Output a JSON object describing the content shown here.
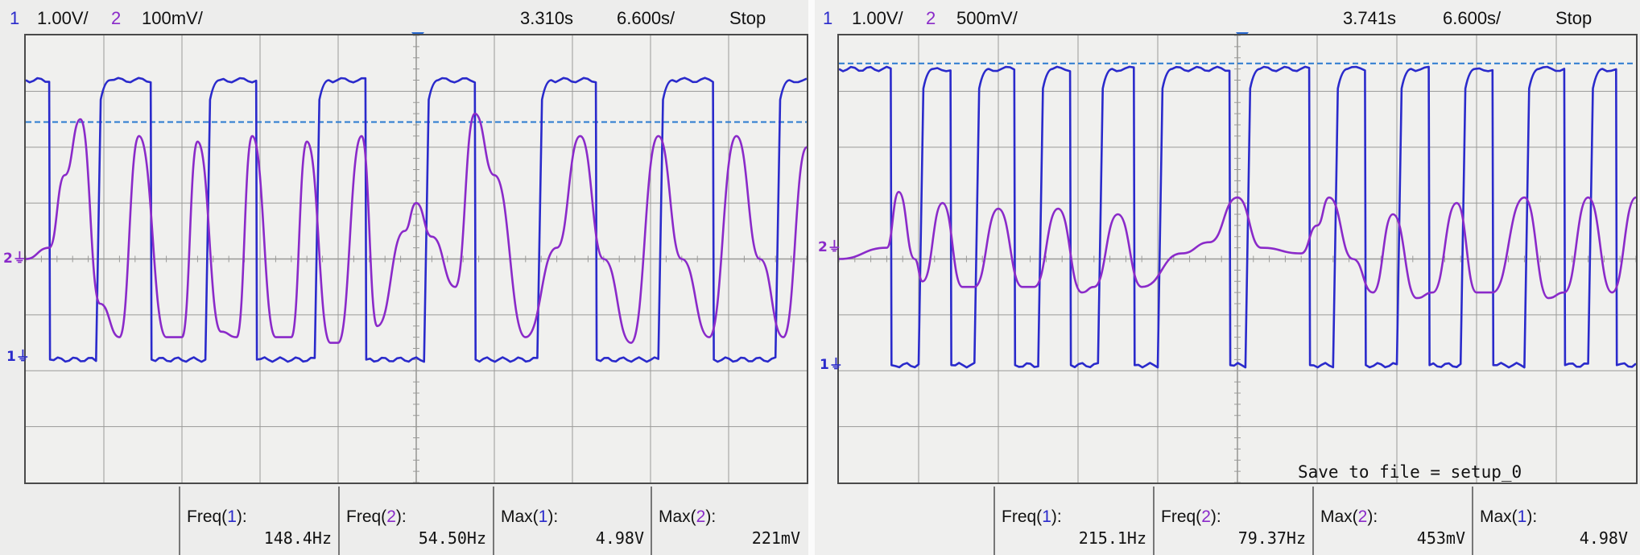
{
  "left": {
    "ch1_label": "1",
    "ch1_scale": "1.00V/",
    "ch2_label": "2",
    "ch2_scale": "100mV/",
    "timebase": "3.310s",
    "delay": "6.600s/",
    "run_state": "Stop",
    "measurements": [
      {
        "label_prefix": "Freq(",
        "channel": "1",
        "label_suffix": "):",
        "value": "148.4Hz",
        "color": "#2a2acb"
      },
      {
        "label_prefix": "Freq(",
        "channel": "2",
        "label_suffix": "):",
        "value": "54.50Hz",
        "color": "#8a2ac9"
      },
      {
        "label_prefix": "Max(",
        "channel": "1",
        "label_suffix": "):",
        "value": "4.98V",
        "color": "#2a2acb"
      },
      {
        "label_prefix": "Max(",
        "channel": "2",
        "label_suffix": "):",
        "value": "221mV",
        "color": "#8a2ac9"
      }
    ]
  },
  "right": {
    "ch1_label": "1",
    "ch1_scale": "1.00V/",
    "ch2_label": "2",
    "ch2_scale": "500mV/",
    "timebase": "3.741s",
    "delay": "6.600s/",
    "run_state": "Stop",
    "save_message": "Save to file = setup_0",
    "measurements": [
      {
        "label_prefix": "Freq(",
        "channel": "1",
        "label_suffix": "):",
        "value": "215.1Hz",
        "color": "#2a2acb"
      },
      {
        "label_prefix": "Freq(",
        "channel": "2",
        "label_suffix": "):",
        "value": "79.37Hz",
        "color": "#8a2ac9"
      },
      {
        "label_prefix": "Max(",
        "channel": "2",
        "label_suffix": "):",
        "value": "453mV",
        "color": "#8a2ac9"
      },
      {
        "label_prefix": "Max(",
        "channel": "1",
        "label_suffix": "):",
        "value": "4.98V",
        "color": "#2a2acb"
      }
    ]
  },
  "colors": {
    "ch1": "#2a2acb",
    "ch2": "#8a2ac9",
    "trigger_level": "#2a7ad0",
    "grid": "#9a9a98"
  },
  "chart_data": [
    {
      "type": "line",
      "title": "",
      "xlabel": "",
      "ylabel": "",
      "grid": true,
      "divisions": {
        "x": 10,
        "y": 8
      },
      "series": [
        {
          "name": "1",
          "color": "#2a2acb",
          "kind": "square",
          "high": 7.2,
          "low": 2.2,
          "start_level": "high",
          "start_edge": 0.3,
          "edges": [
            0.3,
            0.9,
            1.6,
            2.3,
            2.95,
            3.7,
            4.35,
            5.1,
            5.75,
            6.55,
            7.3,
            8.1,
            8.8,
            9.6,
            10.0
          ],
          "rise_time": 0.06
        },
        {
          "name": "2",
          "color": "#8a2ac9",
          "kind": "wave",
          "points": [
            [
              0,
              4.0
            ],
            [
              0.3,
              4.2
            ],
            [
              0.5,
              5.5
            ],
            [
              0.7,
              6.5
            ],
            [
              0.95,
              3.2
            ],
            [
              1.2,
              2.6
            ],
            [
              1.45,
              6.2
            ],
            [
              1.8,
              2.6
            ],
            [
              2.0,
              2.6
            ],
            [
              2.2,
              6.1
            ],
            [
              2.5,
              2.7
            ],
            [
              2.7,
              2.6
            ],
            [
              2.9,
              6.2
            ],
            [
              3.2,
              2.6
            ],
            [
              3.4,
              2.6
            ],
            [
              3.6,
              6.1
            ],
            [
              3.9,
              2.5
            ],
            [
              4.0,
              2.5
            ],
            [
              4.3,
              6.2
            ],
            [
              4.5,
              2.8
            ],
            [
              4.85,
              4.5
            ],
            [
              5.0,
              5.0
            ],
            [
              5.2,
              4.4
            ],
            [
              5.5,
              3.5
            ],
            [
              5.75,
              6.6
            ],
            [
              6.0,
              5.5
            ],
            [
              6.4,
              2.6
            ],
            [
              6.8,
              4.2
            ],
            [
              7.1,
              6.2
            ],
            [
              7.4,
              4.0
            ],
            [
              7.75,
              2.5
            ],
            [
              8.1,
              6.2
            ],
            [
              8.4,
              4.0
            ],
            [
              8.75,
              2.6
            ],
            [
              9.1,
              6.2
            ],
            [
              9.4,
              4.0
            ],
            [
              9.7,
              2.6
            ],
            [
              10.0,
              6.0
            ]
          ]
        }
      ],
      "trigger_level": 6.45
    },
    {
      "type": "line",
      "title": "",
      "xlabel": "",
      "ylabel": "",
      "grid": true,
      "divisions": {
        "x": 10,
        "y": 8
      },
      "series": [
        {
          "name": "1",
          "color": "#2a2acb",
          "kind": "square",
          "high": 7.4,
          "low": 2.1,
          "start_level": "high",
          "start_edge": 0.65,
          "edges": [
            0.65,
            1.0,
            1.4,
            1.7,
            2.2,
            2.5,
            2.9,
            3.25,
            3.7,
            4.0,
            4.9,
            5.1,
            5.9,
            6.2,
            6.6,
            7.0,
            7.4,
            7.8,
            8.2,
            8.6,
            9.1,
            9.4,
            9.75,
            10.0
          ],
          "rise_time": 0.06
        },
        {
          "name": "2",
          "color": "#8a2ac9",
          "kind": "wave",
          "points": [
            [
              0,
              4.0
            ],
            [
              0.6,
              4.2
            ],
            [
              0.75,
              5.2
            ],
            [
              0.95,
              4.0
            ],
            [
              1.05,
              3.6
            ],
            [
              1.3,
              5.0
            ],
            [
              1.55,
              3.5
            ],
            [
              1.7,
              3.5
            ],
            [
              2.0,
              4.9
            ],
            [
              2.3,
              3.5
            ],
            [
              2.45,
              3.5
            ],
            [
              2.75,
              4.9
            ],
            [
              3.05,
              3.4
            ],
            [
              3.2,
              3.5
            ],
            [
              3.5,
              4.8
            ],
            [
              3.8,
              3.5
            ],
            [
              4.3,
              4.1
            ],
            [
              4.65,
              4.3
            ],
            [
              5.0,
              5.1
            ],
            [
              5.3,
              4.2
            ],
            [
              5.8,
              4.1
            ],
            [
              6.0,
              4.6
            ],
            [
              6.15,
              5.1
            ],
            [
              6.45,
              4.0
            ],
            [
              6.7,
              3.4
            ],
            [
              6.95,
              4.8
            ],
            [
              7.25,
              3.3
            ],
            [
              7.45,
              3.4
            ],
            [
              7.75,
              5.0
            ],
            [
              8.0,
              3.4
            ],
            [
              8.2,
              3.4
            ],
            [
              8.6,
              5.1
            ],
            [
              8.9,
              3.3
            ],
            [
              9.1,
              3.4
            ],
            [
              9.4,
              5.1
            ],
            [
              9.7,
              3.4
            ],
            [
              10.0,
              5.1
            ]
          ]
        }
      ],
      "trigger_level": 7.5
    }
  ]
}
